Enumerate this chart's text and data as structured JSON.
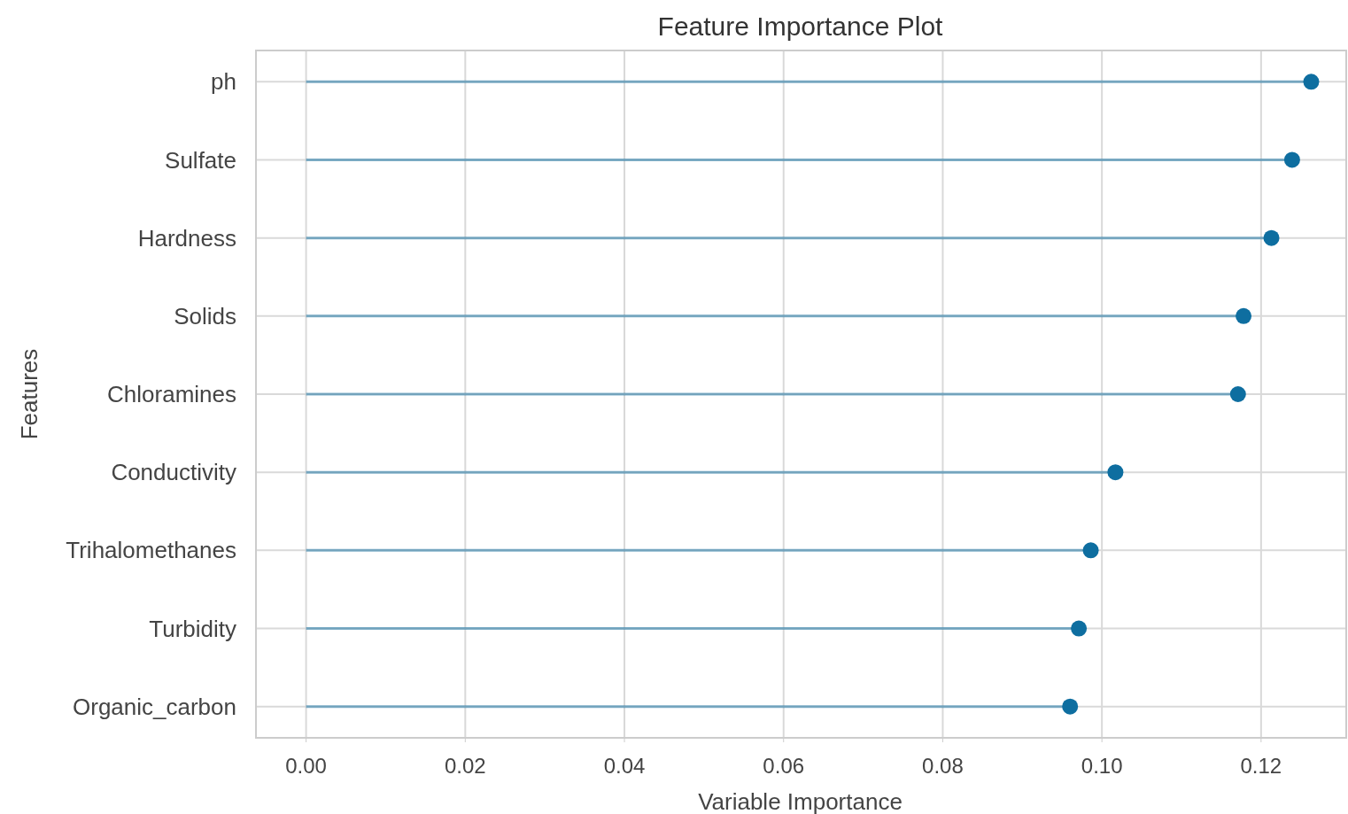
{
  "chart_data": {
    "type": "lollipop",
    "orientation": "horizontal",
    "title": "Feature Importance Plot",
    "xlabel": "Variable Importance",
    "ylabel": "Features",
    "categories": [
      "ph",
      "Sulfate",
      "Hardness",
      "Solids",
      "Chloramines",
      "Conductivity",
      "Trihalomethanes",
      "Turbidity",
      "Organic_carbon"
    ],
    "series": [
      {
        "color": "#0e6ea0",
        "values": [
          0.1263,
          0.1239,
          0.1213,
          0.1178,
          0.1171,
          0.1017,
          0.0986,
          0.0971,
          0.096
        ]
      }
    ],
    "xlim": [
      -0.0063,
      0.1307
    ],
    "xticks": [
      {
        "value": 0,
        "label": "0.00"
      },
      {
        "value": 0.02,
        "label": "0.02"
      },
      {
        "value": 0.04,
        "label": "0.04"
      },
      {
        "value": 0.06,
        "label": "0.06"
      },
      {
        "value": 0.08,
        "label": "0.08"
      },
      {
        "value": 0.1,
        "label": "0.10"
      },
      {
        "value": 0.12,
        "label": "0.12"
      }
    ],
    "grid": true,
    "marker": "circle"
  }
}
